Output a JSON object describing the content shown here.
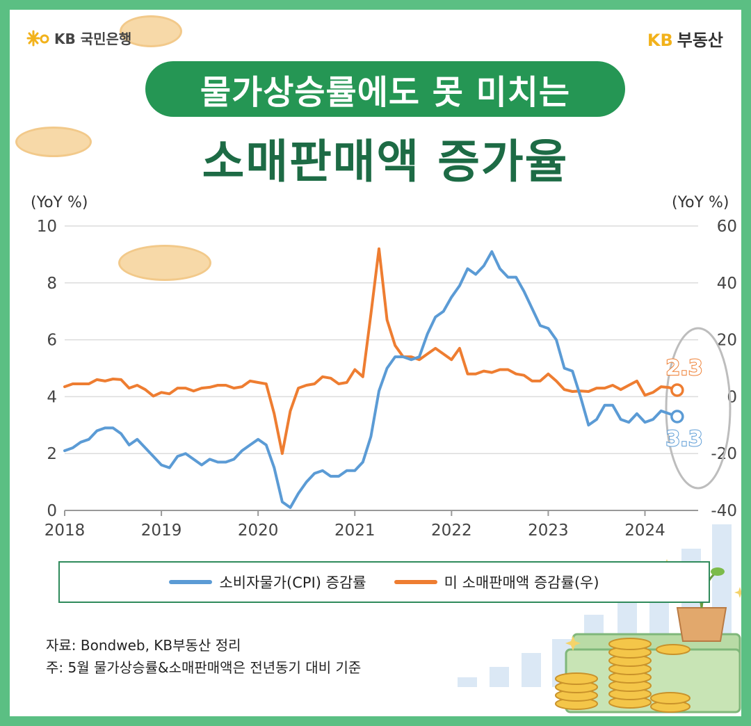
{
  "header": {
    "bank_name": "KB 국민은행",
    "brand_prefix": "KB",
    "brand_name": "부동산"
  },
  "title": {
    "line1": "물가상승률에도 못 미치는",
    "line2": "소매판매액 증가율"
  },
  "chart_data": {
    "type": "line",
    "left_axis": {
      "unit": "(YoY %)",
      "ylim": [
        0,
        10
      ],
      "ticks": [
        0,
        2,
        4,
        6,
        8,
        10
      ]
    },
    "right_axis": {
      "unit": "(YoY %)",
      "ylim": [
        -40,
        60
      ],
      "ticks": [
        -40,
        -20,
        0,
        20,
        40,
        60
      ]
    },
    "x_range": [
      2018.0,
      2024.55
    ],
    "x_ticks": [
      "2018",
      "2019",
      "2020",
      "2021",
      "2022",
      "2023",
      "2024"
    ],
    "grid": true,
    "series": [
      {
        "name": "소비자물가(CPI) 증감률",
        "axis": "left",
        "color": "#5b9bd5",
        "end_label": "3.3",
        "values": [
          2.1,
          2.2,
          2.4,
          2.5,
          2.8,
          2.9,
          2.9,
          2.7,
          2.3,
          2.5,
          2.2,
          1.9,
          1.6,
          1.5,
          1.9,
          2.0,
          1.8,
          1.6,
          1.8,
          1.7,
          1.7,
          1.8,
          2.1,
          2.3,
          2.5,
          2.3,
          1.5,
          0.3,
          0.1,
          0.6,
          1.0,
          1.3,
          1.4,
          1.2,
          1.2,
          1.4,
          1.4,
          1.7,
          2.6,
          4.2,
          5.0,
          5.4,
          5.4,
          5.3,
          5.4,
          6.2,
          6.8,
          7.0,
          7.5,
          7.9,
          8.5,
          8.3,
          8.6,
          9.1,
          8.5,
          8.2,
          8.2,
          7.7,
          7.1,
          6.5,
          6.4,
          6.0,
          5.0,
          4.9,
          4.0,
          3.0,
          3.2,
          3.7,
          3.7,
          3.2,
          3.1,
          3.4,
          3.1,
          3.2,
          3.5,
          3.4,
          3.3
        ]
      },
      {
        "name": "미 소매판매액 증감률(우)",
        "axis": "right",
        "color": "#ee7d31",
        "end_label": "2.3",
        "values": [
          3.5,
          4.5,
          4.5,
          4.5,
          6.0,
          5.5,
          6.2,
          6.0,
          3.0,
          4.0,
          2.5,
          0.2,
          1.5,
          1.0,
          3.0,
          3.0,
          2.0,
          3.0,
          3.3,
          4.0,
          4.0,
          3.0,
          3.5,
          5.5,
          5.0,
          4.5,
          -6.0,
          -20.0,
          -5.0,
          3.0,
          4.0,
          4.5,
          7.0,
          6.5,
          4.5,
          5.0,
          9.5,
          7.0,
          29.0,
          52.0,
          27.0,
          18.0,
          14.0,
          14.0,
          13.0,
          15.0,
          17.0,
          15.0,
          13.0,
          17.0,
          8.0,
          8.0,
          9.0,
          8.5,
          9.5,
          9.5,
          8.0,
          7.5,
          5.5,
          5.5,
          8.0,
          5.5,
          2.5,
          1.8,
          2.0,
          1.8,
          3.0,
          3.0,
          4.0,
          2.5,
          4.0,
          5.5,
          0.5,
          1.5,
          3.5,
          3.2,
          2.3
        ]
      }
    ]
  },
  "legend": {
    "items": [
      {
        "label": "소비자물가(CPI) 증감률",
        "color": "#5b9bd5"
      },
      {
        "label": "미 소매판매액 증감률(우)",
        "color": "#ee7d31"
      }
    ]
  },
  "notes": {
    "source": "자료: Bondweb, KB부동산 정리",
    "footnote": "주: 5월 물가상승률&소매판매액은 전년동기 대비 기준"
  },
  "colors": {
    "frame": "#5bbf83",
    "title_pill": "#259654",
    "title_text": "#1d6b45",
    "brand_gold": "#f2b21b"
  }
}
